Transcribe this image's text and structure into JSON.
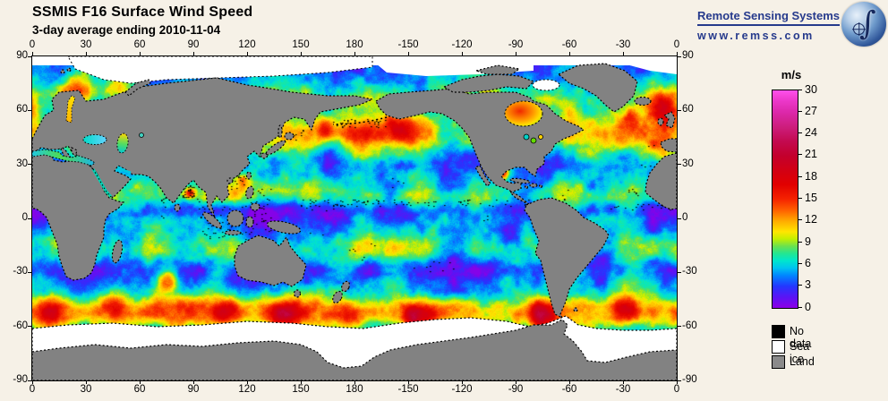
{
  "header": {
    "title": "SSMIS F16 Surface Wind Speed",
    "subtitle": "3-day average ending 2010-11-04"
  },
  "brand": {
    "name": "Remote Sensing Systems",
    "url": "www.remss.com",
    "logo": "earth-globe-integral-icon",
    "color": "#263a8c"
  },
  "axes": {
    "lon_labels": [
      "0",
      "30",
      "60",
      "90",
      "120",
      "150",
      "180",
      "-150",
      "-120",
      "-90",
      "-60",
      "-30",
      "0"
    ],
    "lat_labels": [
      "90",
      "60",
      "30",
      "0",
      "-30",
      "-60",
      "-90"
    ]
  },
  "colorbar": {
    "unit": "m/s",
    "min": 0,
    "max": 30,
    "ticks": [
      0,
      3,
      6,
      9,
      12,
      15,
      18,
      21,
      24,
      27,
      30
    ],
    "stops": [
      [
        0,
        "#8c00e6"
      ],
      [
        1.5,
        "#5a14f5"
      ],
      [
        3,
        "#2337ff"
      ],
      [
        4.5,
        "#0087ff"
      ],
      [
        5.5,
        "#00c3f0"
      ],
      [
        6.5,
        "#00e6cd"
      ],
      [
        7.5,
        "#23e691"
      ],
      [
        8.5,
        "#69e150"
      ],
      [
        9.5,
        "#c3ef00"
      ],
      [
        10.5,
        "#ffe600"
      ],
      [
        12,
        "#ffaa00"
      ],
      [
        13.5,
        "#ff5f00"
      ],
      [
        15,
        "#f52300"
      ],
      [
        17,
        "#e10000"
      ],
      [
        19,
        "#d20014"
      ],
      [
        21,
        "#c3002d"
      ],
      [
        23,
        "#c30a50"
      ],
      [
        25,
        "#cd1e7d"
      ],
      [
        27,
        "#dc28aa"
      ],
      [
        28.5,
        "#eb37c8"
      ],
      [
        30,
        "#ff50eb"
      ]
    ]
  },
  "legend": {
    "items": [
      {
        "label": "No data",
        "color": "#000000"
      },
      {
        "label": "Sea ice",
        "color": "#ffffff"
      },
      {
        "label": "Land",
        "color": "#8a8a8a"
      }
    ]
  },
  "chart_data": {
    "type": "heatmap",
    "title": "SSMIS F16 Surface Wind Speed",
    "subtitle": "3-day average ending 2010-11-04",
    "variable": "surface wind speed",
    "units": "m/s",
    "date": "2010-11-04",
    "averaging_period": "3-day",
    "projection": "equirectangular, global, Pacific-centered (0E to 360E left to right)",
    "lon_range": [
      0,
      360
    ],
    "lat_range": [
      -90,
      90
    ],
    "value_range": [
      0,
      30
    ],
    "field_model": {
      "base": 5.0,
      "zonal": [
        {
          "lat": -52,
          "sigma": 9,
          "amp": 7.5
        },
        {
          "lat": 47,
          "sigma": 10,
          "amp": 5.5
        },
        {
          "lat": -17,
          "sigma": 8,
          "amp": 3.0
        },
        {
          "lat": 13,
          "sigma": 7,
          "amp": 2.4
        },
        {
          "lat": 4,
          "sigma": 5,
          "amp": -2.2
        },
        {
          "lat": -28,
          "sigma": 6,
          "amp": -1.3
        },
        {
          "lat": 30,
          "sigma": 6,
          "amp": -0.8
        },
        {
          "lat": 68,
          "sigma": 8,
          "amp": 2.0
        },
        {
          "lat": -75,
          "sigma": 6,
          "amp": -2.0
        }
      ],
      "storms": [
        [
          352,
          63,
          10,
          13
        ],
        [
          25,
          70,
          11,
          8
        ],
        [
          48,
          73,
          7,
          5
        ],
        [
          333,
          57,
          6,
          5
        ],
        [
          183,
          47,
          9,
          7
        ],
        [
          205,
          51,
          8,
          6
        ],
        [
          163,
          50,
          6,
          5
        ],
        [
          263,
          25,
          3.5,
          11
        ],
        [
          88,
          14,
          3,
          10
        ],
        [
          112,
          14,
          5,
          3
        ],
        [
          118,
          21,
          3.5,
          6
        ],
        [
          75,
          -35,
          7,
          10
        ],
        [
          45,
          -48,
          9,
          6
        ],
        [
          110,
          -52,
          8,
          6
        ],
        [
          140,
          -54,
          8,
          8
        ],
        [
          177,
          -55,
          7,
          6
        ],
        [
          215,
          -55,
          9,
          10
        ],
        [
          285,
          -55,
          8,
          8
        ],
        [
          330,
          -50,
          7,
          5
        ],
        [
          10,
          -53,
          8,
          6
        ],
        [
          350,
          40,
          7,
          3
        ],
        [
          285,
          14,
          6,
          2
        ],
        [
          300,
          60,
          6,
          5
        ]
      ],
      "calms": [
        [
          130,
          3,
          10,
          -3.2
        ],
        [
          146,
          9,
          6,
          -2.8
        ],
        [
          120,
          -8,
          6,
          -2.5
        ],
        [
          235,
          -18,
          10,
          -3.2
        ],
        [
          255,
          -28,
          8,
          -2.8
        ],
        [
          210,
          -25,
          7,
          -2.2
        ],
        [
          268,
          -8,
          6,
          -2.8
        ],
        [
          252,
          -4,
          8,
          -2.2
        ],
        [
          320,
          -22,
          8,
          -2.8
        ],
        [
          347,
          -4,
          6,
          -2.2
        ],
        [
          65,
          6,
          6,
          -2.4
        ],
        [
          188,
          -28,
          7,
          -2.6
        ],
        [
          160,
          -30,
          6,
          -2.2
        ],
        [
          355,
          -28,
          6,
          -2.2
        ],
        [
          250,
          14,
          5,
          -2.0
        ],
        [
          95,
          -28,
          6,
          -2.0
        ]
      ],
      "no_data_speckle_boxes": [
        [
          300,
          560,
          160,
          168,
          0.1
        ],
        [
          640,
          716,
          165,
          172,
          0.08
        ],
        [
          186,
          264,
          164,
          206,
          0.045
        ],
        [
          238,
          268,
          148,
          196,
          0.035
        ],
        [
          336,
          352,
          158,
          172,
          0.03
        ],
        [
          300,
          332,
          164,
          176,
          0.025
        ],
        [
          352,
          366,
          212,
          222,
          0.05
        ],
        [
          330,
          342,
          206,
          220,
          0.04
        ],
        [
          308,
          326,
          194,
          206,
          0.05
        ],
        [
          424,
          472,
          226,
          242,
          0.03
        ],
        [
          376,
          388,
          204,
          212,
          0.04
        ],
        [
          366,
          376,
          216,
          228,
          0.04
        ],
        [
          402,
          422,
          136,
          148,
          0.025
        ],
        [
          336,
          396,
          70,
          80,
          0.07
        ],
        [
          288,
          308,
          78,
          94,
          0.05
        ],
        [
          144,
          150,
          158,
          182,
          0.1
        ],
        [
          184,
          188,
          148,
          166,
          0.08
        ],
        [
          590,
          600,
          146,
          164,
          0.06
        ],
        [
          676,
          692,
          116,
          124,
          0.05
        ],
        [
          664,
          678,
          146,
          156,
          0.06
        ],
        [
          686,
          700,
          98,
          104,
          0.04
        ],
        [
          498,
          512,
          176,
          184,
          0.05
        ],
        [
          168,
          182,
          144,
          158,
          0.28
        ],
        [
          222,
          240,
          132,
          150,
          0.12
        ]
      ]
    }
  }
}
